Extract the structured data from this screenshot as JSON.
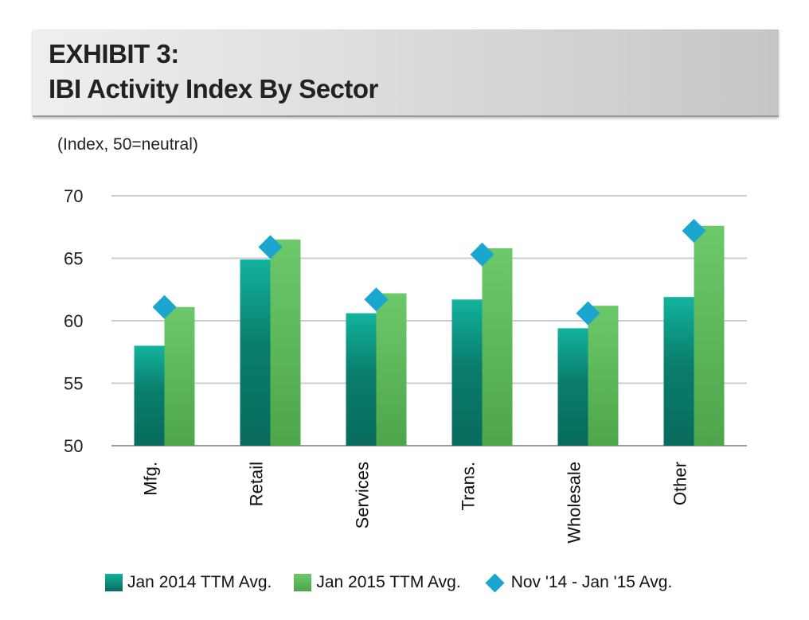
{
  "header": {
    "line1": "EXHIBIT 3:",
    "line2": "IBI Activity Index By Sector"
  },
  "chart_data": {
    "type": "bar",
    "title": "IBI Activity Index By Sector",
    "ylabel": "(Index, 50=neutral)",
    "xlabel": "",
    "ylim": [
      50,
      70
    ],
    "yticks": [
      50,
      55,
      60,
      65,
      70
    ],
    "grid": true,
    "categories": [
      "Mfg.",
      "Retail",
      "Services",
      "Trans.",
      "Wholesale",
      "Other"
    ],
    "series": [
      {
        "name": "Jan 2014 TTM Avg.",
        "kind": "bar",
        "color": "#0e8f7e",
        "values": [
          58.0,
          64.9,
          60.6,
          61.7,
          59.4,
          61.9
        ]
      },
      {
        "name": "Jan 2015 TTM Avg.",
        "kind": "bar",
        "color": "#5cb85a",
        "values": [
          61.1,
          66.5,
          62.2,
          65.8,
          61.2,
          67.6
        ]
      },
      {
        "name": "Nov '14 - Jan '15 Avg.",
        "kind": "marker",
        "color": "#1aa6cf",
        "values": [
          61.1,
          65.9,
          61.7,
          65.3,
          60.6,
          67.2
        ]
      }
    ],
    "legend_position": "bottom"
  }
}
